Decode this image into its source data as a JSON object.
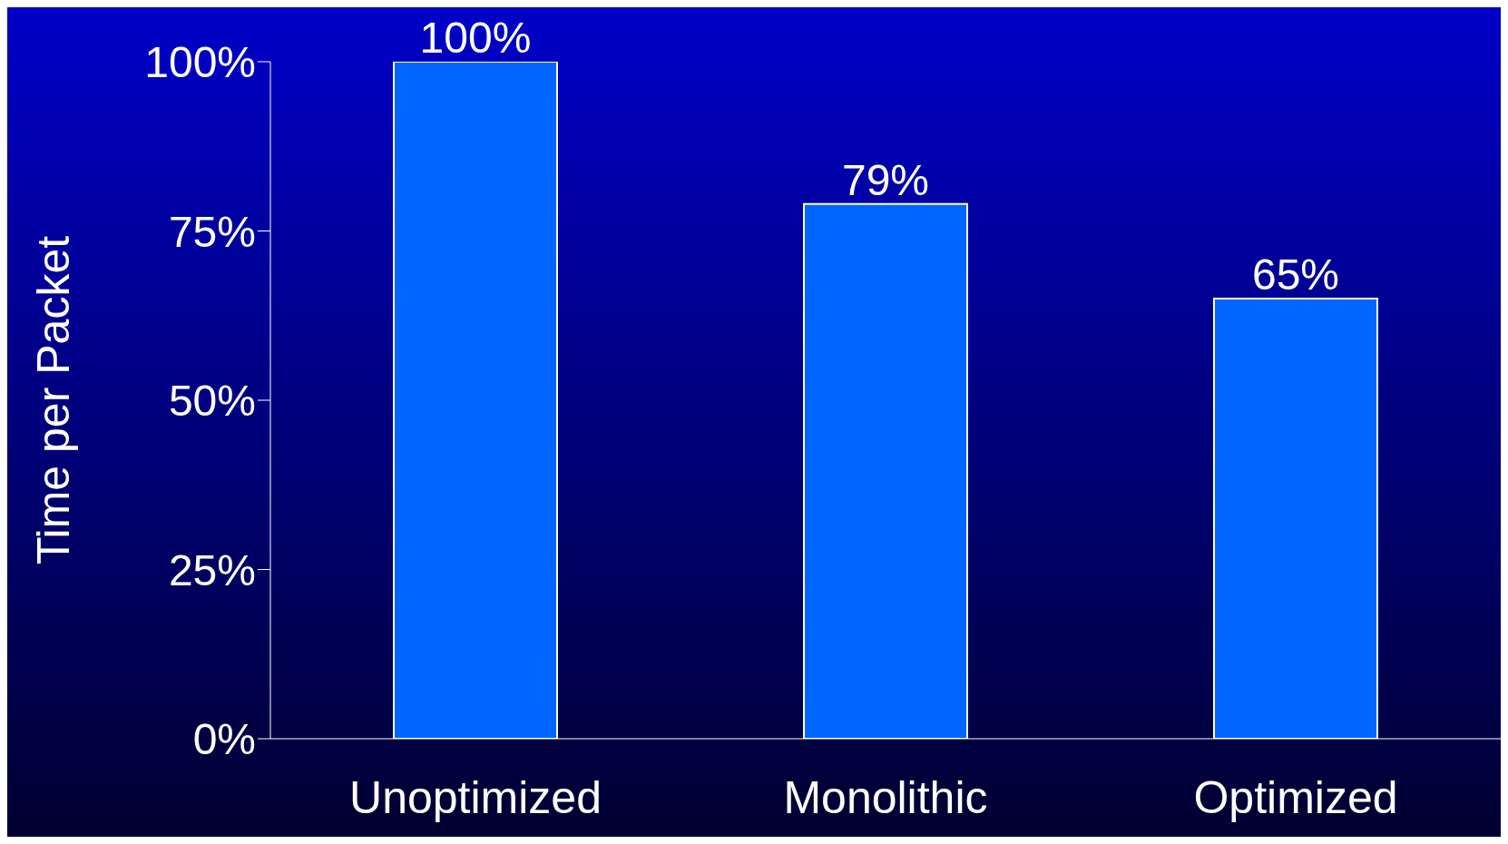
{
  "chart_data": {
    "type": "bar",
    "ylabel": "Time per Packet",
    "categories": [
      "Unoptimized",
      "Monolithic",
      "Optimized"
    ],
    "values": [
      100,
      79,
      65
    ],
    "value_labels": [
      "100%",
      "79%",
      "65%"
    ],
    "color": "#0066ff",
    "ylim": [
      0,
      100
    ],
    "yticks": [
      {
        "value": 0,
        "label": "0%"
      },
      {
        "value": 25,
        "label": "25%"
      },
      {
        "value": 50,
        "label": "50%"
      },
      {
        "value": 75,
        "label": "75%"
      },
      {
        "value": 100,
        "label": "100%"
      }
    ],
    "grid": false,
    "legend": false
  }
}
